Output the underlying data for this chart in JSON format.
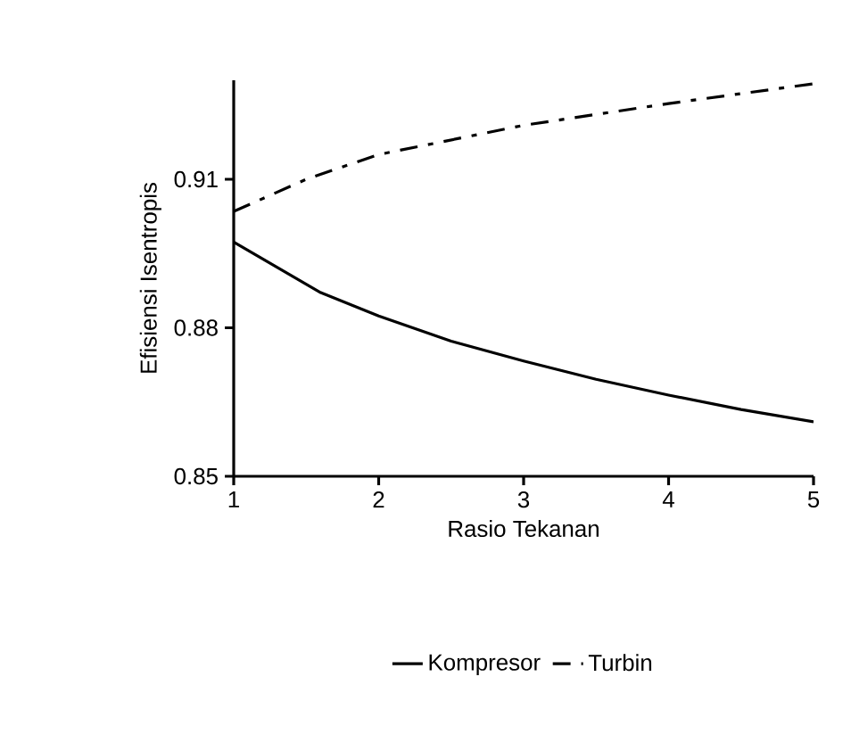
{
  "chart_data": {
    "type": "line",
    "xlabel": "Rasio Tekanan",
    "ylabel": "Efisiensi Isentropis",
    "xlim": [
      1,
      5
    ],
    "xticks": [
      1,
      2,
      3,
      4,
      5
    ],
    "ylim": [
      0.85,
      0.93
    ],
    "yticks": [
      0.85,
      0.88,
      0.91
    ],
    "legend": "bottom",
    "grid": false,
    "marker": "none",
    "series": [
      {
        "name": "Kompresor",
        "color": "#000000",
        "line_style": "solid",
        "x": [
          1,
          1.6,
          2,
          2.5,
          3,
          3.5,
          4,
          4.5,
          5
        ],
        "values": [
          0.8973,
          0.8871,
          0.8824,
          0.8773,
          0.8733,
          0.8696,
          0.8664,
          0.8635,
          0.861
        ]
      },
      {
        "name": "Turbin",
        "color": "#000000",
        "line_style": "dashed",
        "x": [
          1,
          1.5,
          2,
          3,
          4,
          5
        ],
        "values": [
          0.9035,
          0.91,
          0.915,
          0.9209,
          0.9253,
          0.9293
        ]
      }
    ]
  }
}
